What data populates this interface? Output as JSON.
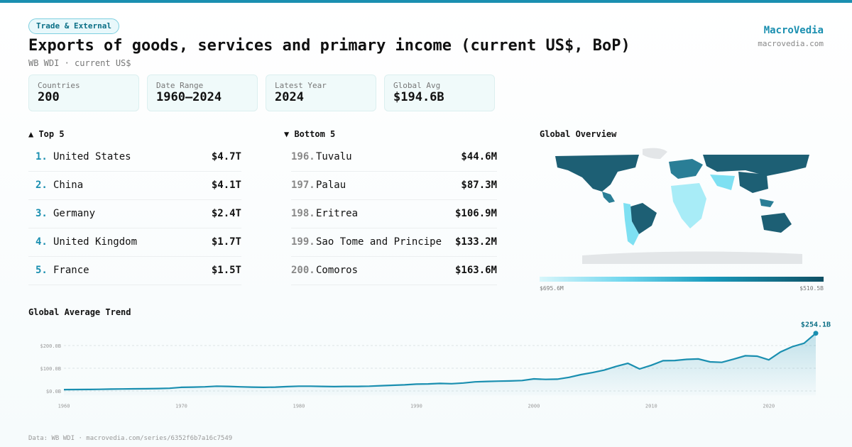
{
  "header": {
    "badge": "Trade & External",
    "title": "Exports of goods, services and primary income (current US$, BoP)",
    "subtitle": "WB WDI · current US$",
    "brand": "MacroVedia",
    "brand_url": "macrovedia.com"
  },
  "stats": [
    {
      "label": "Countries",
      "value": "200"
    },
    {
      "label": "Date Range",
      "value": "1960–2024"
    },
    {
      "label": "Latest Year",
      "value": "2024"
    },
    {
      "label": "Global Avg",
      "value": "$194.6B"
    }
  ],
  "top5": {
    "title": "▲ Top 5",
    "items": [
      {
        "rank": "1.",
        "name": "United States",
        "value": "$4.7T"
      },
      {
        "rank": "2.",
        "name": "China",
        "value": "$4.1T"
      },
      {
        "rank": "3.",
        "name": "Germany",
        "value": "$2.4T"
      },
      {
        "rank": "4.",
        "name": "United Kingdom",
        "value": "$1.7T"
      },
      {
        "rank": "5.",
        "name": "France",
        "value": "$1.5T"
      }
    ]
  },
  "bottom5": {
    "title": "▼ Bottom 5",
    "items": [
      {
        "rank": "196.",
        "name": "Tuvalu",
        "value": "$44.6M"
      },
      {
        "rank": "197.",
        "name": "Palau",
        "value": "$87.3M"
      },
      {
        "rank": "198.",
        "name": "Eritrea",
        "value": "$106.9M"
      },
      {
        "rank": "199.",
        "name": "Sao Tome and Principe",
        "value": "$133.2M"
      },
      {
        "rank": "200.",
        "name": "Comoros",
        "value": "$163.6M"
      }
    ]
  },
  "map": {
    "title": "Global Overview",
    "legend_min": "$695.6M",
    "legend_max": "$510.5B"
  },
  "chart_data": {
    "type": "line",
    "title": "Global Average Trend",
    "color": "#1a8fb0",
    "grid": true,
    "x": [
      1960,
      1961,
      1962,
      1963,
      1964,
      1965,
      1966,
      1967,
      1968,
      1969,
      1970,
      1971,
      1972,
      1973,
      1974,
      1975,
      1976,
      1977,
      1978,
      1979,
      1980,
      1981,
      1982,
      1983,
      1984,
      1985,
      1986,
      1987,
      1988,
      1989,
      1990,
      1991,
      1992,
      1993,
      1994,
      1995,
      1996,
      1997,
      1998,
      1999,
      2000,
      2001,
      2002,
      2003,
      2004,
      2005,
      2006,
      2007,
      2008,
      2009,
      2010,
      2011,
      2012,
      2013,
      2014,
      2015,
      2016,
      2017,
      2018,
      2019,
      2020,
      2021,
      2022,
      2023,
      2024
    ],
    "values": [
      6,
      6.3,
      6.7,
      7.3,
      8.2,
      8.8,
      9.5,
      9.8,
      10.6,
      11.8,
      16,
      17,
      18,
      21,
      20,
      18,
      17,
      16,
      17,
      19,
      21,
      21,
      20,
      19,
      20,
      20,
      21,
      23,
      25,
      27,
      30,
      31,
      33,
      32,
      35,
      40,
      42,
      43,
      44,
      46,
      53,
      51,
      52,
      60,
      72,
      81,
      92,
      108,
      122,
      97,
      113,
      133,
      134,
      139,
      141,
      128,
      126,
      140,
      155,
      153,
      137,
      172,
      195,
      210,
      254.1
    ],
    "value_labels": [
      null,
      null,
      null,
      null,
      null,
      null,
      null,
      null,
      null,
      null,
      null,
      null,
      null,
      null,
      null,
      null,
      null,
      null,
      null,
      null,
      null,
      null,
      null,
      null,
      null,
      null,
      null,
      null,
      null,
      null,
      null,
      null,
      null,
      null,
      null,
      null,
      null,
      null,
      null,
      null,
      null,
      null,
      null,
      null,
      null,
      null,
      null,
      null,
      null,
      null,
      null,
      null,
      null,
      null,
      null,
      null,
      null,
      null,
      null,
      null,
      null,
      null,
      null,
      null,
      "$254.1B"
    ],
    "xlim": [
      1960,
      2024
    ],
    "xticks": [
      1960,
      1970,
      1980,
      1990,
      2000,
      2010,
      2020
    ],
    "ylim": [
      -20,
      260
    ],
    "yticks": [
      {
        "value": 0,
        "label": "$0.0B"
      },
      {
        "value": 100,
        "label": "$100.0B"
      },
      {
        "value": 200,
        "label": "$200.0B"
      }
    ]
  },
  "footer": "Data: WB WDI · macrovedia.com/series/6352f6b7a16c7549"
}
